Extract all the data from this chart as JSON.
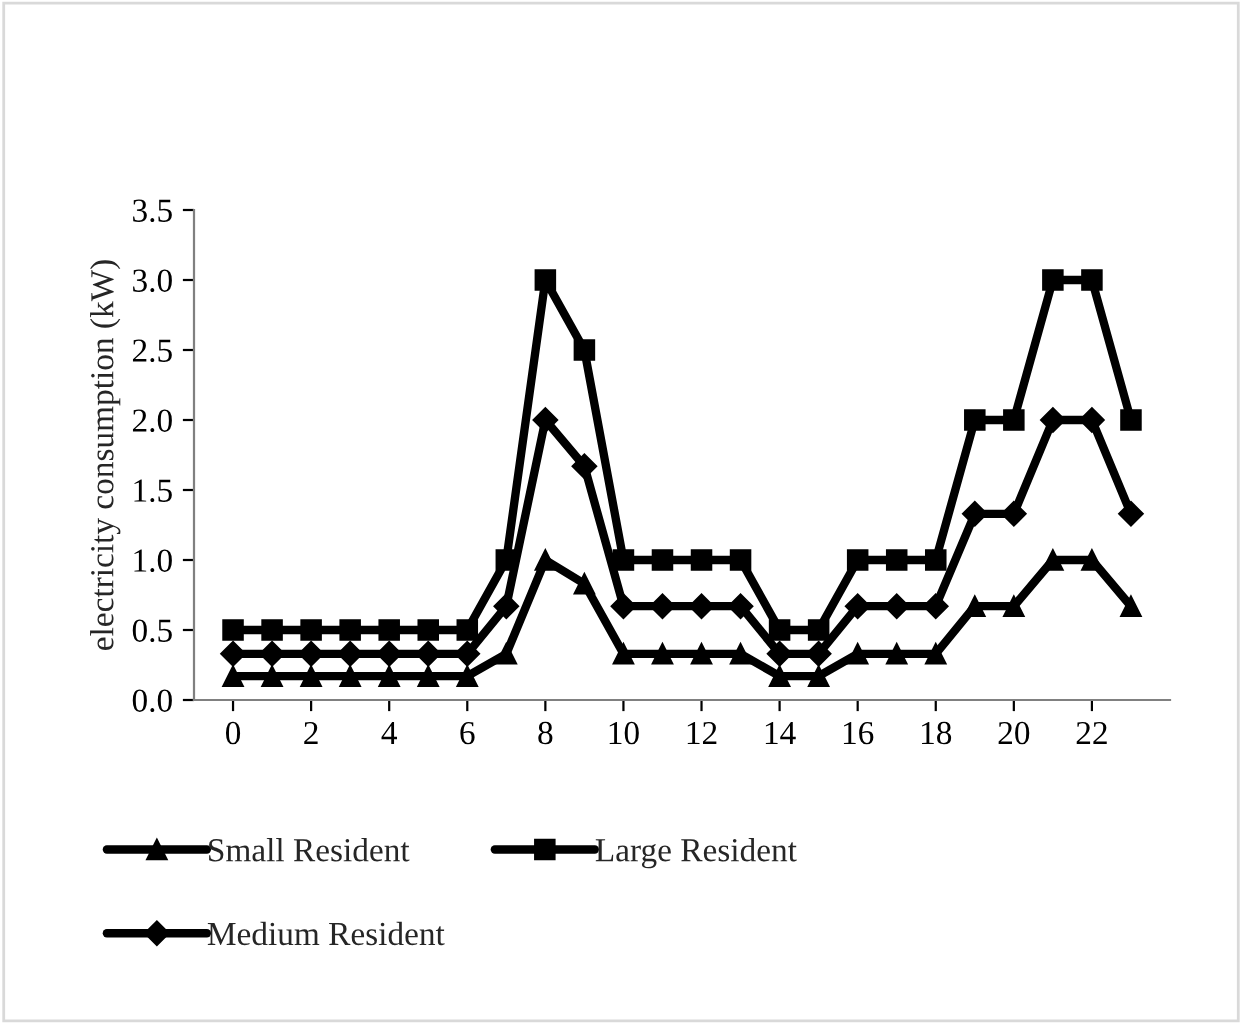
{
  "chart_data": {
    "type": "line",
    "ylabel": "electricity consumption (kW)",
    "x": [
      0,
      1,
      2,
      3,
      4,
      5,
      6,
      7,
      8,
      9,
      10,
      11,
      12,
      13,
      14,
      15,
      16,
      17,
      18,
      19,
      20,
      21,
      22,
      23
    ],
    "series": [
      {
        "name": "Small Resident",
        "color": "#000000",
        "marker": "triangle",
        "values": [
          0.17,
          0.17,
          0.17,
          0.17,
          0.17,
          0.17,
          0.17,
          0.33,
          1.0,
          0.83,
          0.33,
          0.33,
          0.33,
          0.33,
          0.17,
          0.17,
          0.33,
          0.33,
          0.33,
          0.67,
          0.67,
          1.0,
          1.0,
          0.67
        ]
      },
      {
        "name": "Medium Resident",
        "color": "#000000",
        "marker": "diamond",
        "values": [
          0.33,
          0.33,
          0.33,
          0.33,
          0.33,
          0.33,
          0.33,
          0.67,
          2.0,
          1.67,
          0.67,
          0.67,
          0.67,
          0.67,
          0.33,
          0.33,
          0.67,
          0.67,
          0.67,
          1.33,
          1.33,
          2.0,
          2.0,
          1.33
        ]
      },
      {
        "name": "Large Resident",
        "color": "#000000",
        "marker": "square",
        "values": [
          0.5,
          0.5,
          0.5,
          0.5,
          0.5,
          0.5,
          0.5,
          1.0,
          3.0,
          2.5,
          1.0,
          1.0,
          1.0,
          1.0,
          0.5,
          0.5,
          1.0,
          1.0,
          1.0,
          2.0,
          2.0,
          3.0,
          3.0,
          2.0
        ]
      }
    ],
    "xlim": [
      -1,
      24
    ],
    "xticks": [
      0,
      2,
      4,
      6,
      8,
      10,
      12,
      14,
      16,
      18,
      20,
      22
    ],
    "ylim": [
      0,
      3.5
    ],
    "yticks": [
      {
        "value": 0,
        "label": "0.0"
      },
      {
        "value": 0.5,
        "label": "0.5"
      },
      {
        "value": 1,
        "label": "1.0"
      },
      {
        "value": 1.5,
        "label": "1.5"
      },
      {
        "value": 2,
        "label": "2.0"
      },
      {
        "value": 2.5,
        "label": "2.5"
      },
      {
        "value": 3,
        "label": "3.0"
      },
      {
        "value": 3.5,
        "label": "3.5"
      }
    ],
    "grid": false,
    "legend": "bottom",
    "line_style": "solid"
  }
}
